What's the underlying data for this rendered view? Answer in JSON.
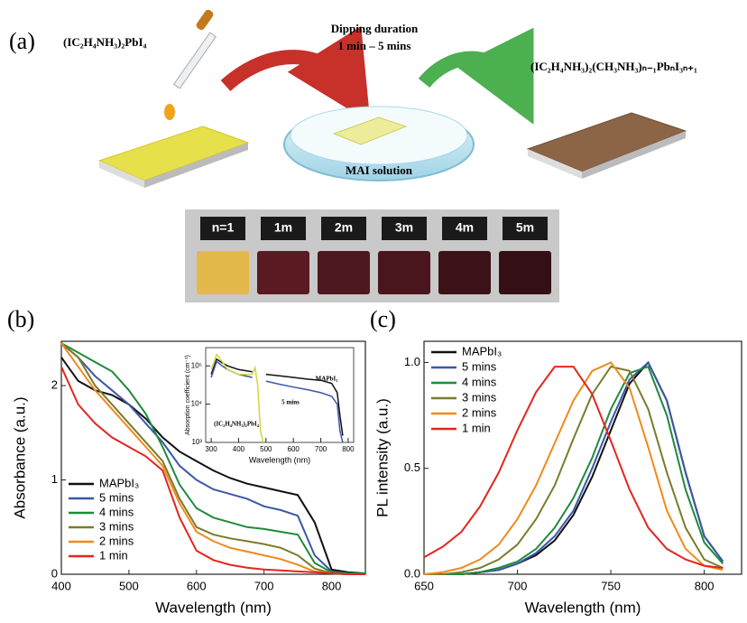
{
  "panel_a": {
    "label": "(a)",
    "precursor": "(IC₂H₄NH₃)₂PbI₄",
    "dipping_title": "Dipping duration",
    "dipping_range": "1 min – 5 mins",
    "solution": "MAI solution",
    "product": "(IC₂H₄NH₃)₂(CH₃NH₃)ₙ₋₁PbₙI₃ₙ₊₁",
    "photo_labels": [
      "n=1",
      "1m",
      "2m",
      "3m",
      "4m",
      "5m"
    ]
  },
  "chart_data": [
    {
      "type": "line",
      "panel_label": "(b)",
      "xlabel": "Wavelength (nm)",
      "ylabel": "Absorbance (a.u.)",
      "xlim": [
        400,
        850
      ],
      "ylim": [
        0,
        2.47
      ],
      "xticks": [
        400,
        500,
        600,
        700,
        800
      ],
      "yticks": [
        0,
        1,
        2
      ],
      "legend": "lower left",
      "x": [
        400,
        425,
        450,
        475,
        500,
        525,
        550,
        575,
        600,
        625,
        650,
        675,
        700,
        725,
        750,
        775,
        800,
        825,
        850
      ],
      "series": [
        {
          "name": "MAPbI₃",
          "color": "#111111",
          "values": [
            2.3,
            2.05,
            1.95,
            1.9,
            1.8,
            1.65,
            1.45,
            1.3,
            1.2,
            1.1,
            1.02,
            0.96,
            0.92,
            0.88,
            0.84,
            0.55,
            0.05,
            0.02,
            0.01
          ]
        },
        {
          "name": "5 mins",
          "color": "#3b57a8",
          "values": [
            2.45,
            2.3,
            2.1,
            1.95,
            1.8,
            1.6,
            1.4,
            1.15,
            1.0,
            0.9,
            0.85,
            0.8,
            0.72,
            0.68,
            0.62,
            0.2,
            0.03,
            0.01,
            0.01
          ]
        },
        {
          "name": "4 mins",
          "color": "#1f8a3c",
          "values": [
            2.45,
            2.35,
            2.25,
            2.15,
            1.95,
            1.7,
            1.35,
            0.95,
            0.7,
            0.6,
            0.55,
            0.5,
            0.48,
            0.45,
            0.42,
            0.12,
            0.02,
            0.01,
            0.01
          ]
        },
        {
          "name": "3 mins",
          "color": "#7b7b2c",
          "values": [
            2.45,
            2.3,
            2.0,
            1.8,
            1.6,
            1.4,
            1.2,
            0.8,
            0.5,
            0.42,
            0.38,
            0.35,
            0.32,
            0.28,
            0.2,
            0.06,
            0.01,
            0,
            0
          ]
        },
        {
          "name": "2 mins",
          "color": "#f08a1c",
          "values": [
            2.45,
            2.2,
            1.95,
            1.75,
            1.55,
            1.35,
            1.15,
            0.75,
            0.45,
            0.35,
            0.28,
            0.24,
            0.2,
            0.16,
            0.1,
            0.03,
            0.01,
            0,
            0
          ]
        },
        {
          "name": "1 min",
          "color": "#e3261e",
          "values": [
            2.2,
            1.8,
            1.6,
            1.45,
            1.35,
            1.25,
            1.1,
            0.6,
            0.25,
            0.15,
            0.1,
            0.07,
            0.05,
            0.04,
            0.03,
            0.02,
            0.01,
            0,
            0
          ]
        }
      ]
    },
    {
      "type": "line",
      "panel_label": "(c)",
      "xlabel": "Wavelength (nm)",
      "ylabel": "PL intensity (a.u.)",
      "xlim": [
        650,
        820
      ],
      "ylim": [
        0,
        1.1
      ],
      "xticks": [
        650,
        700,
        750,
        800
      ],
      "yticks": [
        {
          "value": 0,
          "label": "0.0"
        },
        {
          "value": 0.5,
          "label": "0.5"
        },
        {
          "value": 1,
          "label": "1.0"
        }
      ],
      "legend": "upper left",
      "x": [
        650,
        660,
        670,
        680,
        690,
        700,
        710,
        720,
        730,
        740,
        750,
        760,
        770,
        780,
        790,
        800,
        810
      ],
      "series": [
        {
          "name": "MAPbI₃",
          "color": "#111111",
          "values": [
            0,
            0,
            0,
            0.01,
            0.02,
            0.05,
            0.09,
            0.16,
            0.28,
            0.46,
            0.68,
            0.9,
            1.0,
            0.82,
            0.48,
            0.18,
            0.06
          ]
        },
        {
          "name": "5 mins",
          "color": "#3b57a8",
          "values": [
            0,
            0,
            0,
            0.01,
            0.02,
            0.05,
            0.1,
            0.18,
            0.3,
            0.5,
            0.72,
            0.92,
            1.0,
            0.82,
            0.48,
            0.18,
            0.06
          ]
        },
        {
          "name": "4 mins",
          "color": "#1f8a3c",
          "values": [
            0,
            0,
            0,
            0.01,
            0.03,
            0.06,
            0.12,
            0.22,
            0.36,
            0.55,
            0.78,
            0.95,
            0.98,
            0.75,
            0.4,
            0.15,
            0.05
          ]
        },
        {
          "name": "3 mins",
          "color": "#7b7b2c",
          "values": [
            0,
            0,
            0.01,
            0.03,
            0.07,
            0.14,
            0.26,
            0.42,
            0.64,
            0.85,
            0.98,
            0.96,
            0.78,
            0.48,
            0.22,
            0.07,
            0.03
          ]
        },
        {
          "name": "2 mins",
          "color": "#f08a1c",
          "values": [
            0,
            0.01,
            0.03,
            0.07,
            0.14,
            0.26,
            0.42,
            0.62,
            0.82,
            0.96,
            1.0,
            0.88,
            0.6,
            0.3,
            0.12,
            0.04,
            0.02
          ]
        },
        {
          "name": "1 min",
          "color": "#e3261e",
          "values": [
            0.08,
            0.13,
            0.2,
            0.32,
            0.48,
            0.68,
            0.86,
            0.98,
            0.98,
            0.85,
            0.63,
            0.4,
            0.22,
            0.12,
            0.07,
            0.04,
            0.03
          ]
        }
      ]
    },
    {
      "type": "line",
      "xlabel": "Wavelength (nm)",
      "ylabel": "Absorption coefficient (cm⁻¹)",
      "log_y": true,
      "xlim": [
        280,
        820
      ],
      "ylim": [
        1000,
        300000
      ],
      "xticks": [
        300,
        400,
        500,
        600,
        700,
        800
      ],
      "yticks": [
        {
          "value": 1000,
          "label": "10³"
        },
        {
          "value": 10000,
          "label": "10⁴"
        },
        {
          "value": 100000,
          "label": "10⁵"
        }
      ],
      "annotations": [
        "MAPbI₃",
        "5 mins",
        "(IC₂H₄NH₃)₂PbI₄"
      ],
      "x": [
        300,
        320,
        340,
        360,
        400,
        450,
        460,
        470,
        480,
        490,
        500,
        550,
        600,
        650,
        700,
        740,
        760,
        770,
        780
      ],
      "series": [
        {
          "color": "#111111",
          "values": [
            60000,
            150000,
            120000,
            100000,
            80000,
            70000,
            null,
            null,
            null,
            null,
            60000,
            55000,
            50000,
            45000,
            42000,
            35000,
            20000,
            5000,
            1500
          ]
        },
        {
          "color": "#3b57a8",
          "values": [
            50000,
            130000,
            100000,
            80000,
            60000,
            50000,
            null,
            null,
            null,
            null,
            40000,
            33000,
            28000,
            24000,
            20000,
            16000,
            10000,
            2000,
            1000
          ]
        },
        {
          "color": "#d4d63a",
          "values": [
            80000,
            200000,
            130000,
            80000,
            60000,
            60000,
            90000,
            30000,
            2000,
            1000,
            null,
            null,
            null,
            null,
            null,
            null,
            null,
            null,
            null
          ]
        }
      ]
    }
  ]
}
